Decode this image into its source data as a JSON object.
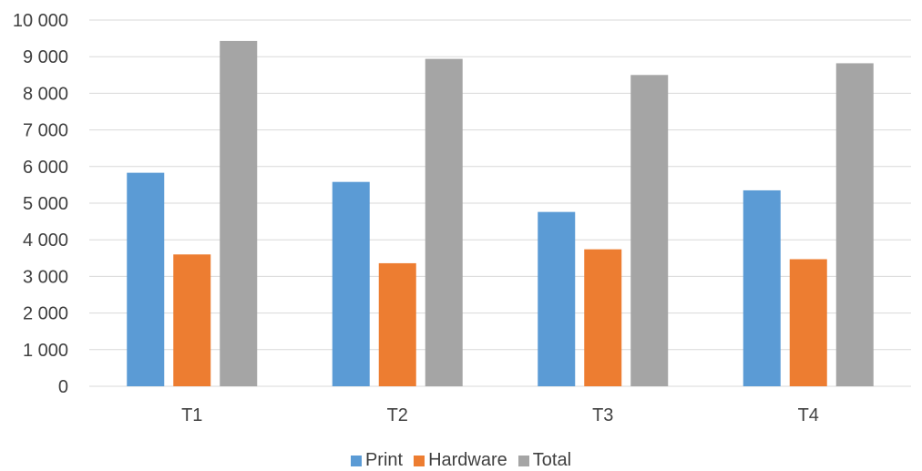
{
  "chart_data": {
    "type": "bar",
    "categories": [
      "T1",
      "T2",
      "T3",
      "T4"
    ],
    "series": [
      {
        "name": "Print",
        "color": "#5B9BD5",
        "values": [
          5830,
          5580,
          4760,
          5350
        ]
      },
      {
        "name": "Hardware",
        "color": "#ED7D31",
        "values": [
          3600,
          3360,
          3740,
          3470
        ]
      },
      {
        "name": "Total",
        "color": "#A5A5A5",
        "values": [
          9430,
          8940,
          8500,
          8820
        ]
      }
    ],
    "yticks": [
      "0",
      "1 000",
      "2 000",
      "3 000",
      "4 000",
      "5 000",
      "6 000",
      "7 000",
      "8 000",
      "9 000",
      "10 000"
    ],
    "ylim": [
      0,
      10000
    ],
    "grid": true,
    "legend_position": "bottom"
  }
}
